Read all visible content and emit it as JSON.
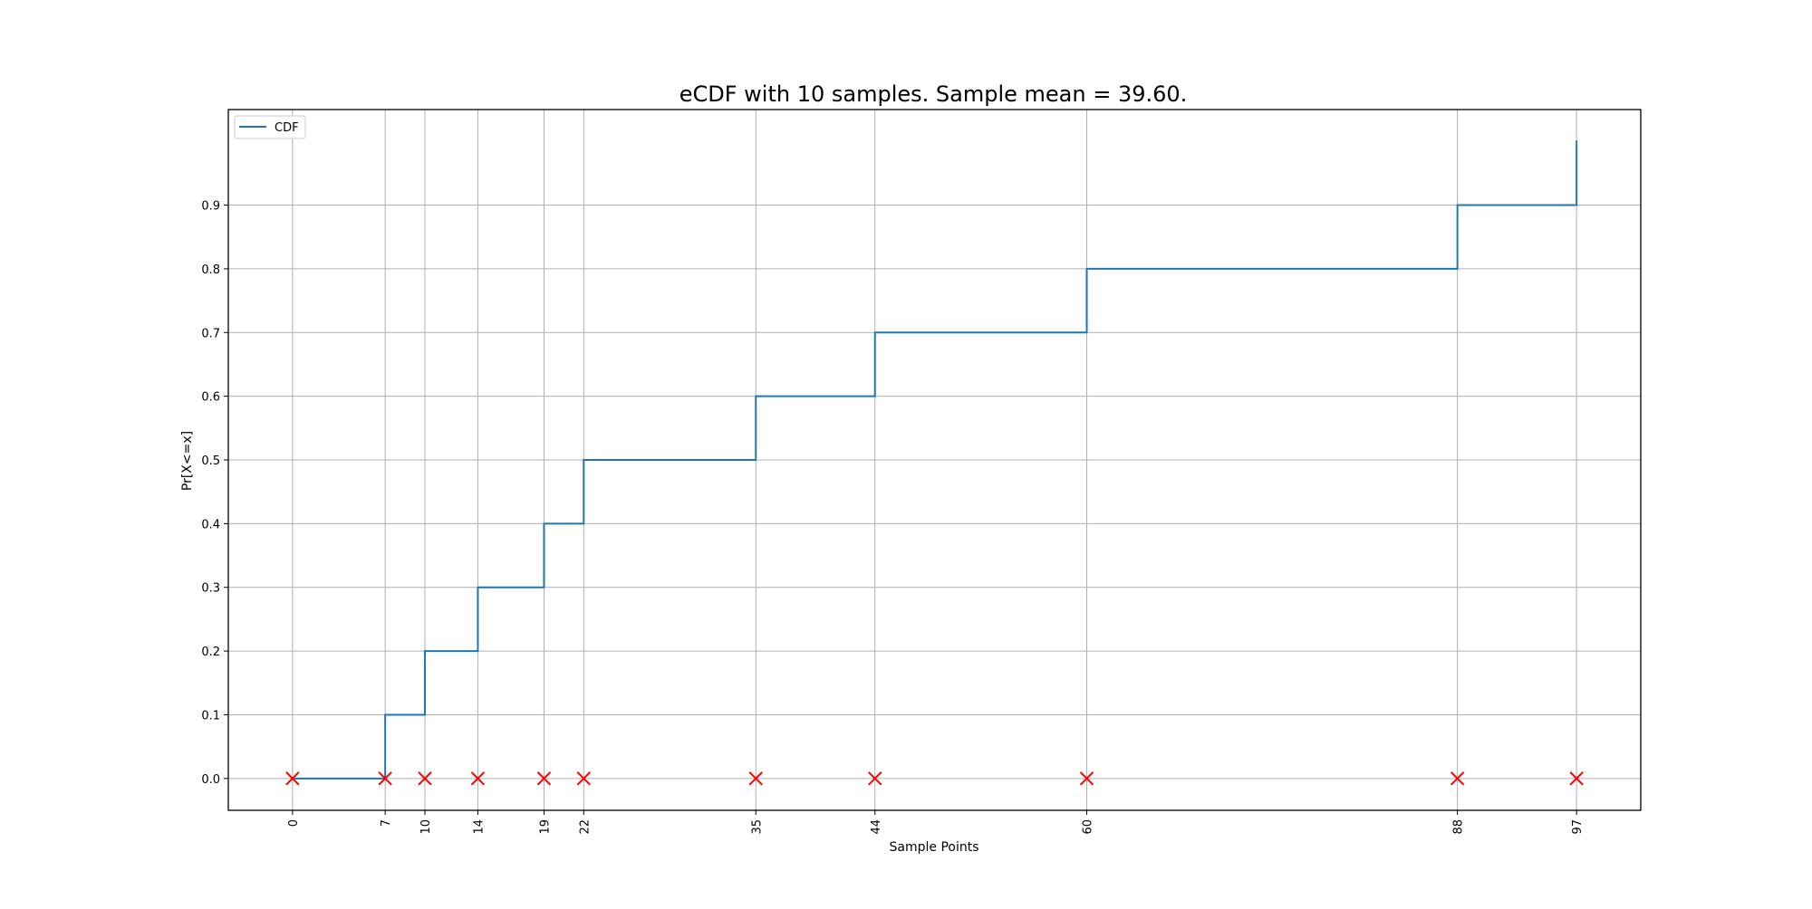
{
  "chart_data": {
    "type": "line",
    "title": "eCDF with 10 samples. Sample mean = 39.60.",
    "xlabel": "Sample Points",
    "ylabel": "Pr[X<=x]",
    "xlim": [
      -4.85,
      101.85
    ],
    "ylim": [
      -0.05,
      1.05
    ],
    "grid": true,
    "legend_position": "top-left",
    "x_ticks": [
      0,
      7,
      10,
      14,
      19,
      22,
      35,
      44,
      60,
      88,
      97
    ],
    "y_ticks": [
      0.0,
      0.1,
      0.2,
      0.3,
      0.4,
      0.5,
      0.6,
      0.7,
      0.8,
      0.9
    ],
    "y_tick_labels": [
      "0.0",
      "0.1",
      "0.2",
      "0.3",
      "0.4",
      "0.5",
      "0.6",
      "0.7",
      "0.8",
      "0.9"
    ],
    "series": [
      {
        "name": "CDF",
        "color": "#1f77b4",
        "style": "step",
        "x": [
          0,
          7,
          7,
          10,
          10,
          14,
          14,
          19,
          19,
          22,
          22,
          35,
          35,
          44,
          44,
          60,
          60,
          88,
          88,
          97,
          97
        ],
        "y": [
          0.0,
          0.0,
          0.1,
          0.1,
          0.2,
          0.2,
          0.3,
          0.3,
          0.4,
          0.4,
          0.5,
          0.5,
          0.6,
          0.6,
          0.7,
          0.7,
          0.8,
          0.8,
          0.9,
          0.9,
          1.0
        ]
      }
    ],
    "markers": {
      "color": "#ff0000",
      "shape": "x",
      "x": [
        0,
        7,
        10,
        14,
        19,
        22,
        35,
        44,
        60,
        88,
        97
      ],
      "y": [
        0,
        0,
        0,
        0,
        0,
        0,
        0,
        0,
        0,
        0,
        0
      ]
    }
  }
}
